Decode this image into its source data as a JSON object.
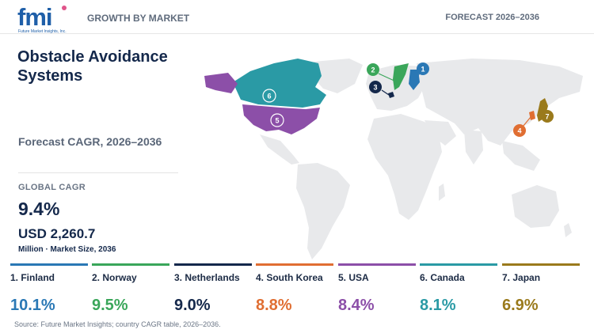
{
  "header": {
    "logo_text": "fmi",
    "logo_subtext": "Future Market Insights, Inc.",
    "left_label": "GROWTH BY MARKET",
    "right_label": "FORECAST 2026–2036"
  },
  "main": {
    "title": "Obstacle Avoidance Systems",
    "subtitle": "Forecast CAGR, 2026–2036",
    "global_cagr_label": "GLOBAL CAGR",
    "global_cagr_value": "9.4%",
    "market_size_value": "USD 2,260.7",
    "market_size_caption": "Million · Market Size, 2036"
  },
  "countries": [
    {
      "rank": "1",
      "label": "1. Finland",
      "cagr": "10.1%",
      "cagr_value": 10.1,
      "color": "#2a78b5"
    },
    {
      "rank": "2",
      "label": "2. Norway",
      "cagr": "9.5%",
      "cagr_value": 9.5,
      "color": "#3aa65a"
    },
    {
      "rank": "3",
      "label": "3. Netherlands",
      "cagr": "9.0%",
      "cagr_value": 9.0,
      "color": "#14284b"
    },
    {
      "rank": "4",
      "label": "4. South Korea",
      "cagr": "8.8%",
      "cagr_value": 8.8,
      "color": "#e06e32"
    },
    {
      "rank": "5",
      "label": "5. USA",
      "cagr": "8.4%",
      "cagr_value": 8.4,
      "color": "#8c4fa8"
    },
    {
      "rank": "6",
      "label": "6. Canada",
      "cagr": "8.1%",
      "cagr_value": 8.1,
      "color": "#2a9aa5"
    },
    {
      "rank": "7",
      "label": "7. Japan",
      "cagr": "6.9%",
      "cagr_value": 6.9,
      "color": "#9a7a1c"
    }
  ],
  "footer": {
    "source": "Source: Future Market Insights; country CAGR table, 2026–2036."
  },
  "colors": {
    "land": "#e8e9eb",
    "accent": "#14284b",
    "logo": "#1f5fa8"
  }
}
